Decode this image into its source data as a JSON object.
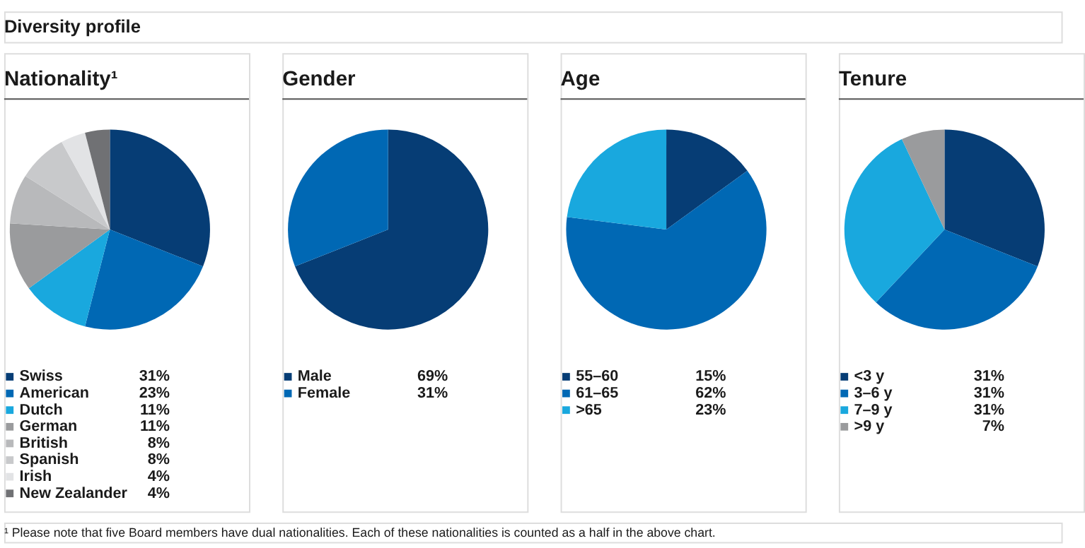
{
  "chart_data": [
    {
      "type": "pie",
      "title": "Nationality¹",
      "categories": [
        "Swiss",
        "American",
        "Dutch",
        "German",
        "British",
        "Spanish",
        "Irish",
        "New Zealander"
      ],
      "values": [
        31,
        23,
        11,
        11,
        8,
        8,
        4,
        4
      ],
      "value_labels": [
        "31%",
        "23%",
        "11%",
        "11%",
        "8%",
        "8%",
        "4%",
        "4%"
      ],
      "colors": [
        "#063d75",
        "#0068b4",
        "#19a8de",
        "#9a9b9d",
        "#b8b9bb",
        "#c8c9cb",
        "#e2e3e5",
        "#707174"
      ],
      "legend": "bottom",
      "annotations": [
        "Diversity profile",
        "¹ Please note that five Board members have dual nationalities. Each of these nationalities is counted as a half in the above chart."
      ]
    },
    {
      "type": "pie",
      "title": "Gender",
      "categories": [
        "Male",
        "Female"
      ],
      "values": [
        69,
        31
      ],
      "value_labels": [
        "69%",
        "31%"
      ],
      "colors": [
        "#063d75",
        "#0068b4"
      ],
      "legend": "bottom"
    },
    {
      "type": "pie",
      "title": "Age",
      "categories": [
        "55–60",
        "61–65",
        ">65"
      ],
      "values": [
        15,
        62,
        23
      ],
      "value_labels": [
        "15%",
        "62%",
        "23%"
      ],
      "colors": [
        "#063d75",
        "#0068b4",
        "#19a8de"
      ],
      "legend": "bottom"
    },
    {
      "type": "pie",
      "title": "Tenure",
      "categories": [
        "<3 y",
        "3–6 y",
        "7–9 y",
        ">9 y"
      ],
      "values": [
        31,
        31,
        31,
        7
      ],
      "value_labels": [
        "31%",
        "31%",
        "31%",
        "7%"
      ],
      "colors": [
        "#063d75",
        "#0068b4",
        "#19a8de",
        "#939598"
      ],
      "legend": "bottom"
    }
  ]
}
